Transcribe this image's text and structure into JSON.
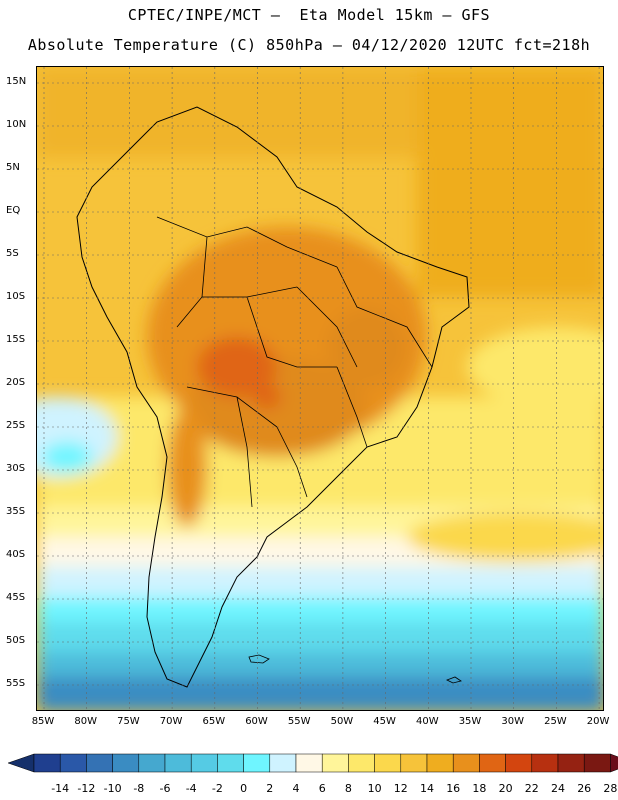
{
  "header": {
    "line1": "CPTEC/INPE/MCT –  Eta Model 15km – GFS",
    "line2": "Absolute Temperature (C) 850hPa – 04/12/2020 12UTC fct=218h"
  },
  "map": {
    "lat_labels": [
      "15N",
      "10N",
      "5N",
      "EQ",
      "5S",
      "10S",
      "15S",
      "20S",
      "25S",
      "30S",
      "35S",
      "40S",
      "45S",
      "50S",
      "55S"
    ],
    "lon_labels": [
      "85W",
      "80W",
      "75W",
      "70W",
      "65W",
      "60W",
      "55W",
      "50W",
      "45W",
      "40W",
      "35W",
      "30W",
      "25W",
      "20W"
    ],
    "grid": "dotted"
  },
  "colorbar": {
    "labels": [
      "-14",
      "-12",
      "-10",
      "-8",
      "-6",
      "-4",
      "-2",
      "0",
      "2",
      "4",
      "6",
      "8",
      "10",
      "12",
      "14",
      "16",
      "18",
      "20",
      "22",
      "24",
      "26",
      "28"
    ],
    "colors": [
      "#1f3f8f",
      "#2a58a8",
      "#3472b4",
      "#3a8cc2",
      "#45a8cf",
      "#4dbbda",
      "#55cbe4",
      "#5fdcec",
      "#6ff5ff",
      "#cff3ff",
      "#fff8e6",
      "#fff59a",
      "#fde86a",
      "#fbd84c",
      "#f6c33a",
      "#efad1f",
      "#e8901c",
      "#e06514",
      "#d3450f",
      "#b73010",
      "#952212",
      "#7a1812"
    ],
    "end_left": "#15306b",
    "end_right": "#6a0c1a"
  }
}
